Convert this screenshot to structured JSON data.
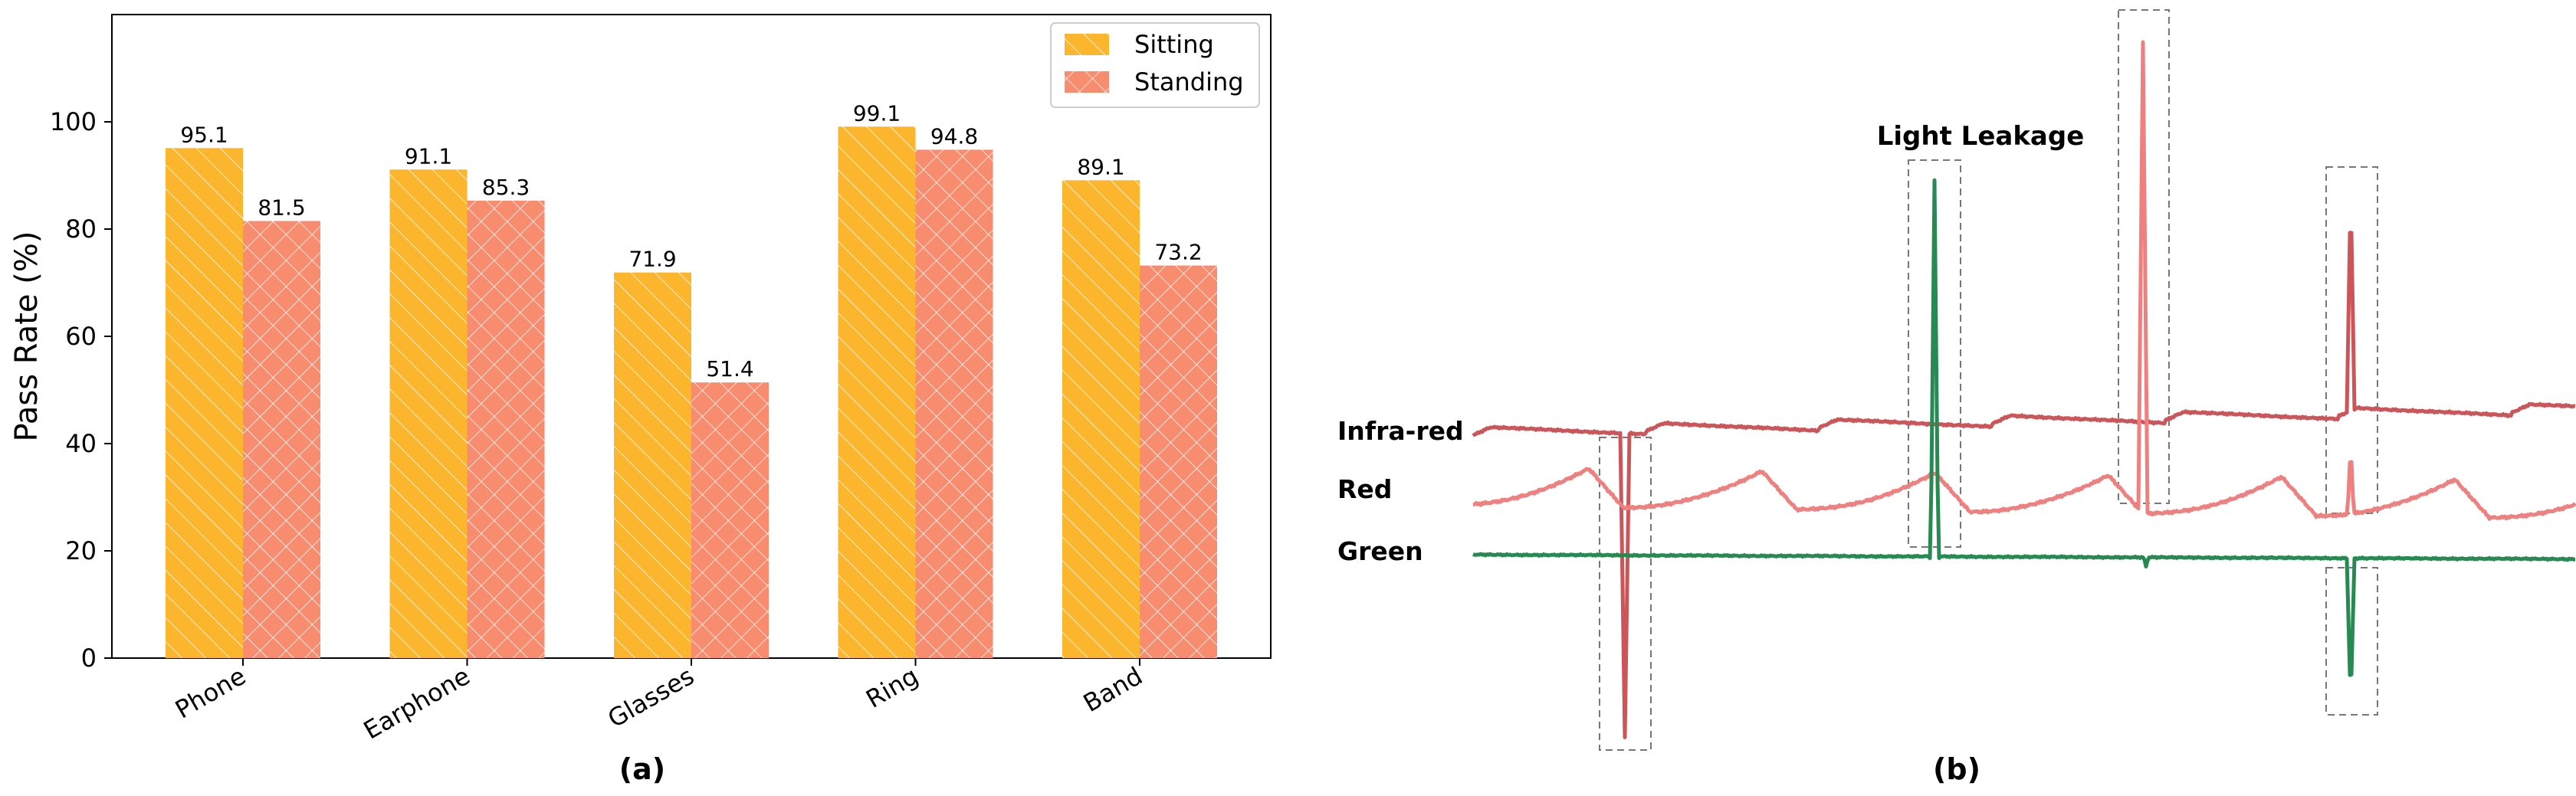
{
  "chart_data": [
    {
      "type": "bar",
      "panel_label": "(a)",
      "categories": [
        "Phone",
        "Earphone",
        "Glasses",
        "Ring",
        "Band"
      ],
      "ylabel": "Pass Rate (%)",
      "ylim": [
        0,
        120
      ],
      "yticks": [
        0,
        20,
        40,
        60,
        80,
        100
      ],
      "legend_position": "top-right",
      "grid": false,
      "series": [
        {
          "name": "Sitting",
          "values": [
            95.1,
            91.1,
            71.9,
            99.1,
            89.1
          ],
          "color": "#FBB62E",
          "hatch": "diagonal"
        },
        {
          "name": "Standing",
          "values": [
            81.5,
            85.3,
            51.4,
            94.8,
            73.2
          ],
          "color": "#F88C6E",
          "hatch": "crosshatch"
        }
      ]
    },
    {
      "type": "line",
      "panel_label": "(b)",
      "annotation": "Light Leakage",
      "series": [
        {
          "name": "Infra-red",
          "color": "#CC555A"
        },
        {
          "name": "Red",
          "color": "#EE8080"
        },
        {
          "name": "Green",
          "color": "#278A52"
        }
      ]
    }
  ]
}
